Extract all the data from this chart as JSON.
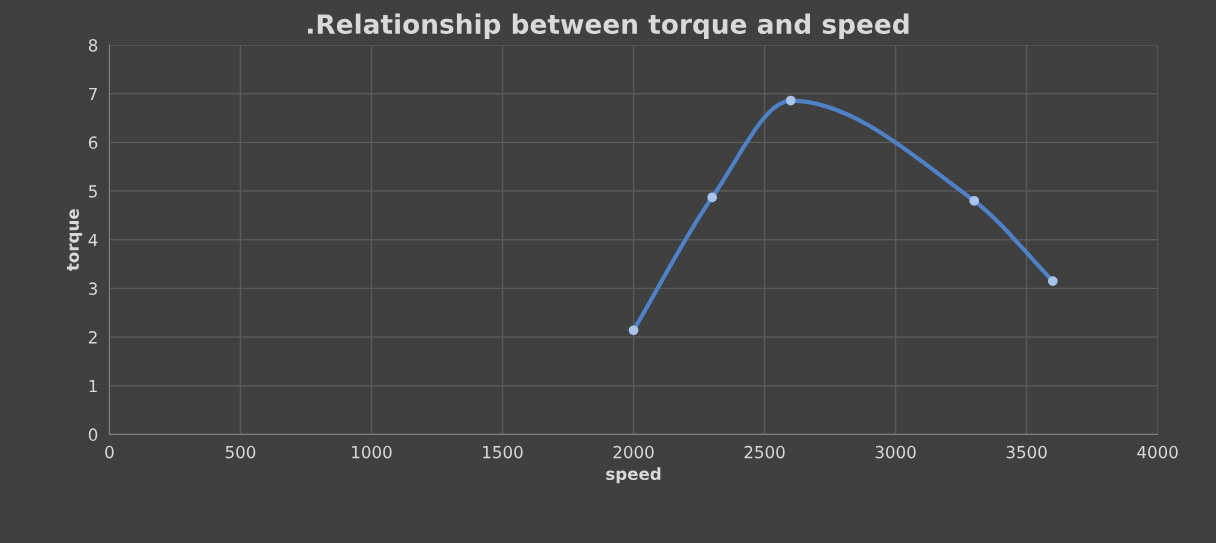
{
  "chart_data": {
    "type": "line",
    "title": ".Relationship between torque and speed",
    "xlabel": "speed",
    "ylabel": "torque",
    "x": [
      2000,
      2300,
      2600,
      3300,
      3600
    ],
    "series": [
      {
        "color": "#4f81c7",
        "values": [
          2.14,
          4.87,
          6.86,
          4.8,
          3.15
        ]
      }
    ],
    "xlim": [
      0,
      4000
    ],
    "xticks": [
      0,
      500,
      1000,
      1500,
      2000,
      2500,
      3000,
      3500,
      4000
    ],
    "ylim": [
      0,
      8
    ],
    "yticks": [
      0,
      1,
      2,
      3,
      4,
      5,
      6,
      7,
      8
    ],
    "grid": true,
    "marker": "circle",
    "line_style": "solid",
    "legend": false
  }
}
